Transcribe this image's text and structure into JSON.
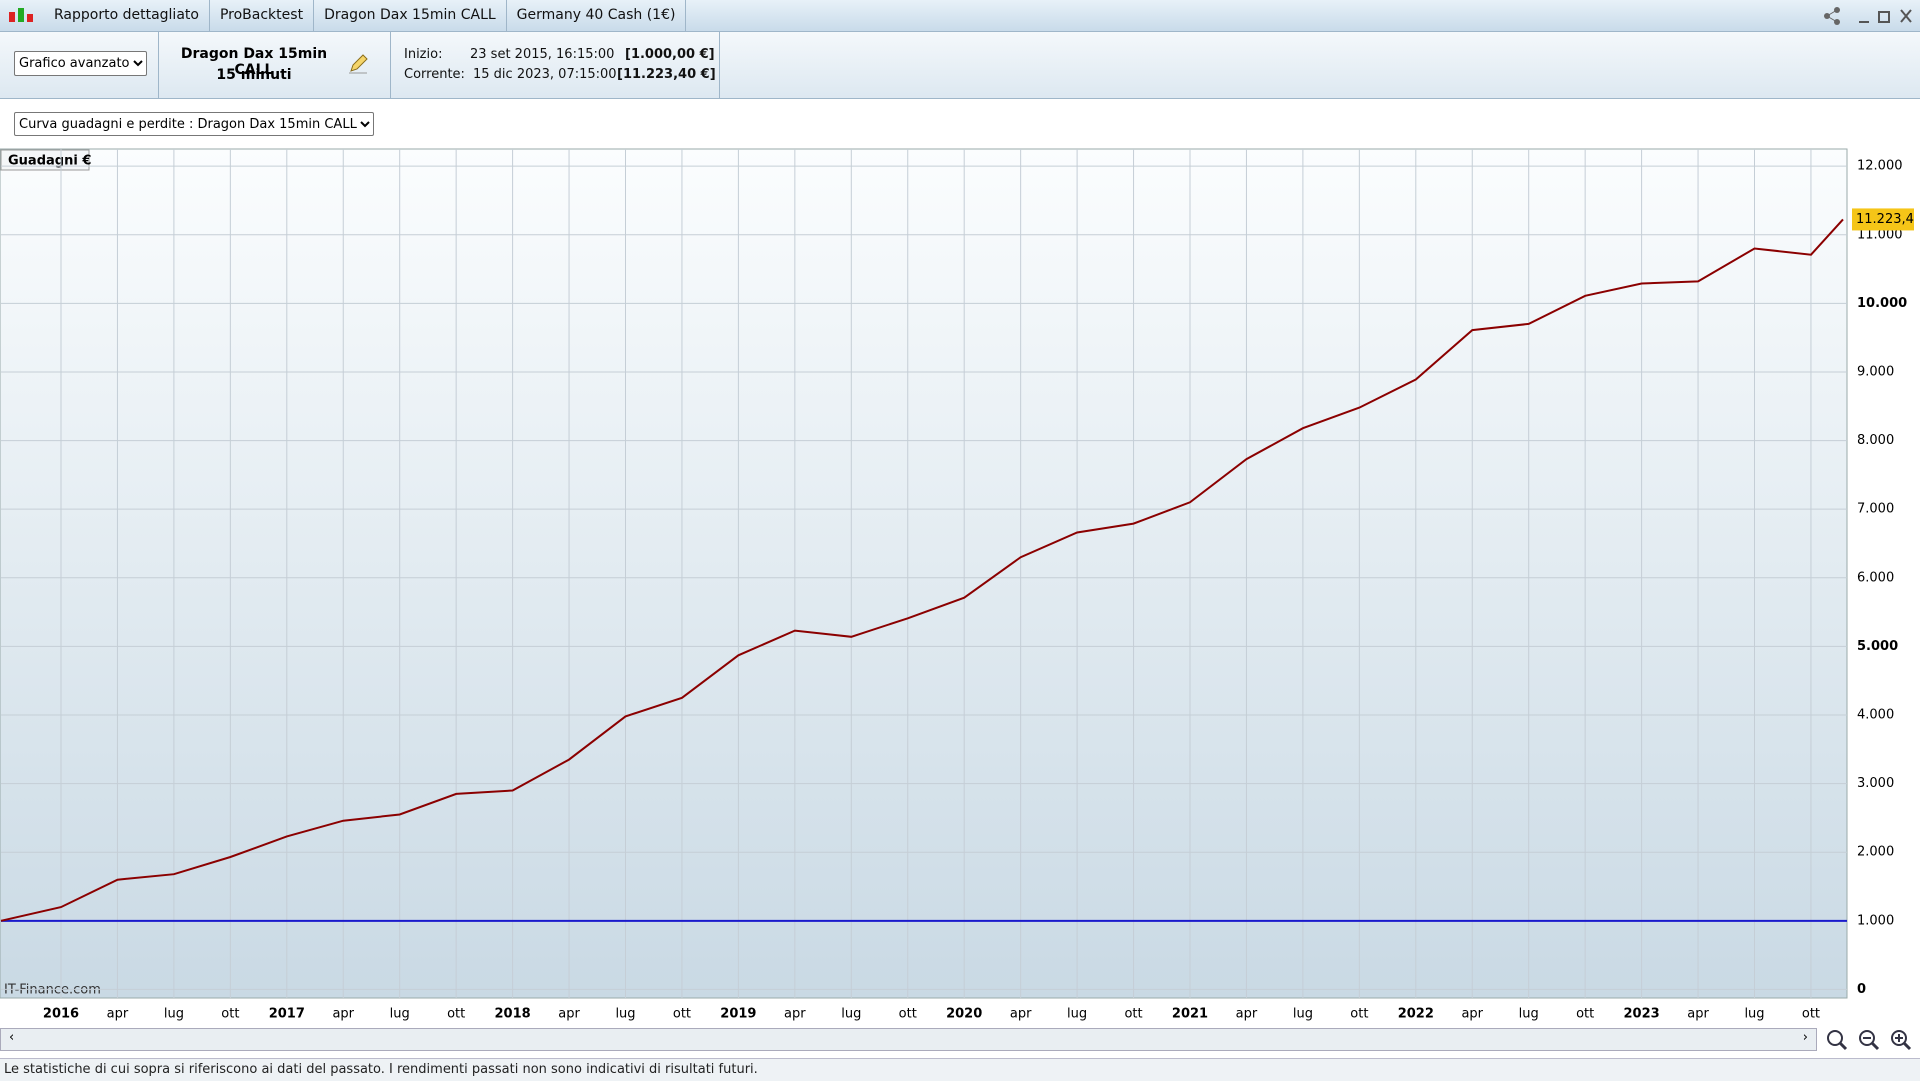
{
  "tabs": [
    "Rapporto dettagliato",
    "ProBacktest",
    "Dragon Dax 15min CALL",
    "Germany 40 Cash (1€)"
  ],
  "toolbar": {
    "view_select": "Grafico avanzato",
    "system_name": "Dragon Dax 15min CALL",
    "timeframe": "15 minuti",
    "start_label": "Inizio:",
    "start_date": "23 set 2015, 16:15:00",
    "start_value": "[1.000,00 €]",
    "current_label": "Corrente:",
    "current_date": "15 dic 2023, 07:15:00",
    "current_value": "[11.223,40 €]"
  },
  "curve_select": "Curva guadagni e perdite : Dragon Dax 15min CALL",
  "footer": "Le statistiche di cui sopra si riferiscono ai dati del passato. I rendimenti passati non sono indicativi di risultati futuri.",
  "chart_data": {
    "type": "line",
    "y_label": "Guadagni €",
    "watermark": "IT-Finance.com",
    "categories": [
      null,
      "2016",
      "apr",
      "lug",
      "ott",
      "2017",
      "apr",
      "lug",
      "ott",
      "2018",
      "apr",
      "lug",
      "ott",
      "2019",
      "apr",
      "lug",
      "ott",
      "2020",
      "apr",
      "lug",
      "ott",
      "2021",
      "apr",
      "lug",
      "ott",
      "2022",
      "apr",
      "lug",
      "ott",
      "2023",
      "apr",
      "lug",
      "ott",
      null
    ],
    "series": [
      {
        "name": "Guadagni",
        "color": "#8b0000",
        "values": [
          1000,
          1200,
          1600,
          1680,
          1930,
          2230,
          2460,
          2550,
          2850,
          2900,
          3350,
          3980,
          4250,
          4870,
          5230,
          5140,
          5410,
          5710,
          6300,
          6660,
          6790,
          7100,
          7730,
          8180,
          8480,
          8890,
          9610,
          9700,
          10110,
          10290,
          10320,
          10800,
          10710,
          11223.4
        ],
        "last_value_label": "11.223,4"
      }
    ],
    "reference_line": {
      "value": 1000,
      "color": "#1a1acc"
    },
    "ylim": [
      -125,
      12250
    ],
    "yticks": [
      0,
      {
        "value": 1000,
        "label": "1.000"
      },
      {
        "value": 2000,
        "label": "2.000"
      },
      {
        "value": 3000,
        "label": "3.000"
      },
      {
        "value": 4000,
        "label": "4.000"
      },
      {
        "value": 5000,
        "label": "5.000"
      },
      {
        "value": 6000,
        "label": "6.000"
      },
      {
        "value": 7000,
        "label": "7.000"
      },
      {
        "value": 8000,
        "label": "8.000"
      },
      {
        "value": 9000,
        "label": "9.000"
      },
      {
        "value": 10000,
        "label": "10.000"
      },
      {
        "value": 11000,
        "label": "11.000"
      },
      {
        "value": 12000,
        "label": "12.000"
      }
    ],
    "grid": true
  }
}
